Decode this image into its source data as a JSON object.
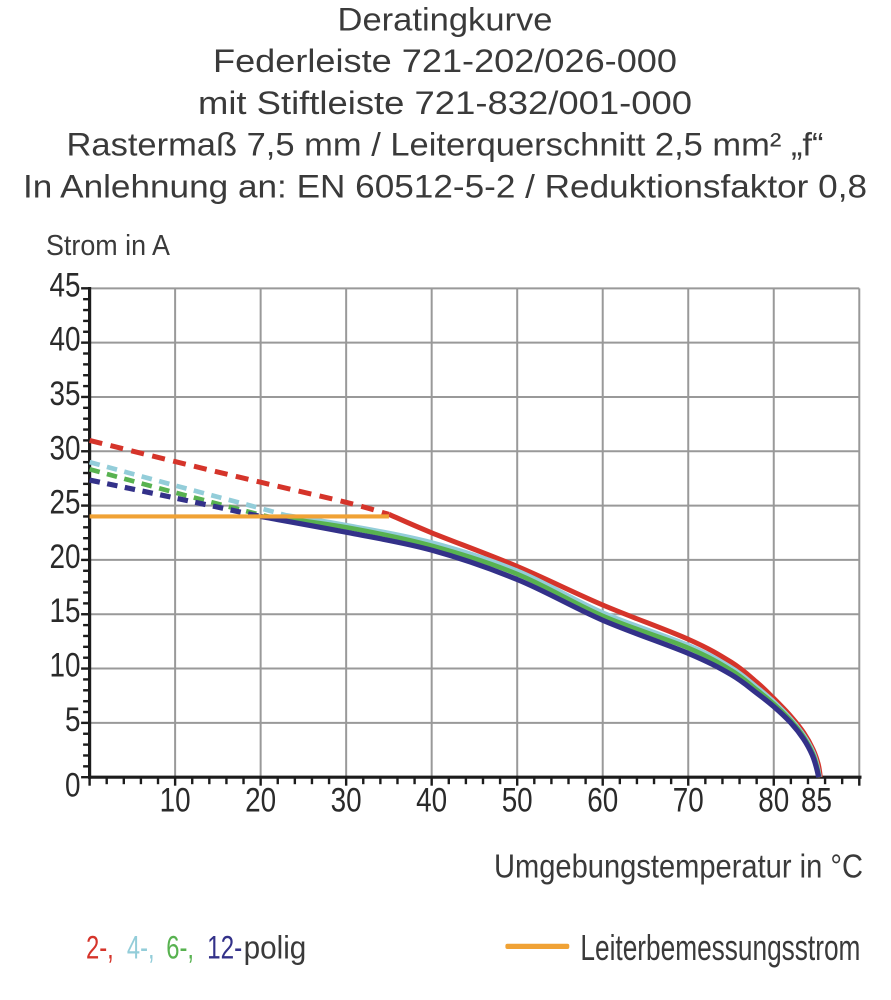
{
  "page": {
    "background": "#ffffff",
    "title_color": "#3a3a3a",
    "tick_label_color": "#2a2a2a",
    "axis_color": "#1c1c1c",
    "grid_color": "#999999"
  },
  "title_block": {
    "lines": [
      "Deratingkurve",
      "Federleiste 721-202/026-000",
      "mit Stiftleiste 721-832/001-000",
      "Rastermaß 7,5 mm / Leiterquerschnitt 2,5 mm² „f“",
      "In Anlehnung an: EN 60512-5-2 / Reduktionsfaktor 0,8"
    ]
  },
  "chart_data": {
    "type": "line",
    "title": "Deratingkurve",
    "ylabel": "Strom in A",
    "xlabel": "Umgebungstemperatur in °C",
    "xlim": [
      0,
      90
    ],
    "ylim": [
      0,
      45
    ],
    "grid": true,
    "x_gridline_step": 10,
    "y_gridline_step": 5,
    "x_minor_tick_step": 2,
    "y_minor_tick_step": 1,
    "x_ticks": [
      {
        "v": 10,
        "label": "10"
      },
      {
        "v": 20,
        "label": "20"
      },
      {
        "v": 30,
        "label": "30"
      },
      {
        "v": 40,
        "label": "40"
      },
      {
        "v": 50,
        "label": "50"
      },
      {
        "v": 60,
        "label": "60"
      },
      {
        "v": 70,
        "label": "70"
      },
      {
        "v": 80,
        "label": "80"
      },
      {
        "v": 85,
        "label": "85"
      }
    ],
    "y_ticks": [
      {
        "v": 0,
        "label": "0"
      },
      {
        "v": 5,
        "label": "5"
      },
      {
        "v": 10,
        "label": "10"
      },
      {
        "v": 15,
        "label": "15"
      },
      {
        "v": 20,
        "label": "20"
      },
      {
        "v": 25,
        "label": "25"
      },
      {
        "v": 30,
        "label": "30"
      },
      {
        "v": 35,
        "label": "35"
      },
      {
        "v": 40,
        "label": "40"
      },
      {
        "v": 45,
        "label": "45"
      }
    ],
    "series": [
      {
        "name": "2-polig",
        "color": "#d5342a",
        "stroke_width": 5.0,
        "dash_until": 35,
        "dash_pattern": [
          13,
          8.5
        ],
        "points": [
          [
            0,
            31.0
          ],
          [
            10,
            29.05
          ],
          [
            20,
            27.15
          ],
          [
            30,
            25.3
          ],
          [
            35,
            24.2
          ],
          [
            40,
            22.5
          ],
          [
            50,
            19.4
          ],
          [
            60,
            15.85
          ],
          [
            70,
            12.7
          ],
          [
            75,
            10.6
          ],
          [
            78,
            8.75
          ],
          [
            80,
            7.25
          ],
          [
            82,
            5.6
          ],
          [
            83.5,
            4.1
          ],
          [
            84.6,
            2.55
          ],
          [
            85.2,
            1.2
          ],
          [
            85.45,
            0
          ]
        ]
      },
      {
        "name": "4-polig",
        "color": "#93cdd9",
        "stroke_width": 4.7,
        "dash_until": 23,
        "dash_pattern": [
          10.5,
          7.5
        ],
        "points": [
          [
            0,
            29.0
          ],
          [
            10,
            26.85
          ],
          [
            20,
            24.75
          ],
          [
            23,
            24.1
          ],
          [
            30,
            23.2
          ],
          [
            40,
            21.6
          ],
          [
            50,
            19.0
          ],
          [
            60,
            15.15
          ],
          [
            70,
            12.15
          ],
          [
            75,
            10.1
          ],
          [
            78,
            8.3
          ],
          [
            80,
            6.95
          ],
          [
            82,
            5.35
          ],
          [
            83.5,
            3.85
          ],
          [
            84.6,
            2.3
          ],
          [
            85.1,
            1.05
          ],
          [
            85.35,
            0
          ]
        ]
      },
      {
        "name": "6-polig",
        "color": "#58b250",
        "stroke_width": 4.7,
        "dash_until": 21.5,
        "dash_pattern": [
          10.5,
          7.5
        ],
        "points": [
          [
            0,
            28.35
          ],
          [
            10,
            26.2
          ],
          [
            20,
            24.15
          ],
          [
            21.5,
            23.95
          ],
          [
            30,
            23.0
          ],
          [
            40,
            21.3
          ],
          [
            50,
            18.7
          ],
          [
            60,
            14.85
          ],
          [
            70,
            11.9
          ],
          [
            75,
            9.85
          ],
          [
            78,
            8.05
          ],
          [
            80,
            6.75
          ],
          [
            82,
            5.2
          ],
          [
            83.5,
            3.7
          ],
          [
            84.55,
            2.2
          ],
          [
            85.05,
            0.95
          ],
          [
            85.3,
            0
          ]
        ]
      },
      {
        "name": "12-polig",
        "color": "#333189",
        "stroke_width": 5.2,
        "dash_until": 20,
        "dash_pattern": [
          10.5,
          7.5
        ],
        "points": [
          [
            0,
            27.35
          ],
          [
            10,
            25.7
          ],
          [
            20,
            24.0
          ],
          [
            30,
            22.55
          ],
          [
            40,
            20.9
          ],
          [
            50,
            18.2
          ],
          [
            60,
            14.45
          ],
          [
            70,
            11.4
          ],
          [
            75,
            9.45
          ],
          [
            78,
            7.75
          ],
          [
            80,
            6.5
          ],
          [
            82,
            5.0
          ],
          [
            83.5,
            3.5
          ],
          [
            84.5,
            2.05
          ],
          [
            85.0,
            0.85
          ],
          [
            85.25,
            0
          ]
        ]
      },
      {
        "name": "Leiterbemessungsstrom",
        "color": "#f0a235",
        "stroke_width": 4.2,
        "dash_until": null,
        "dash_pattern": null,
        "points": [
          [
            0,
            24
          ],
          [
            35,
            24
          ]
        ]
      }
    ]
  },
  "legend": {
    "poles": [
      {
        "label": "2-,",
        "color": "#d5342a"
      },
      {
        "label": "4-,",
        "color": "#93cdd9"
      },
      {
        "label": "6-,",
        "color": "#58b250"
      },
      {
        "label": "12-",
        "color": "#333189"
      }
    ],
    "suffix": "polig",
    "rated": {
      "label": "Leiterbemessungsstrom",
      "color": "#f0a235"
    }
  }
}
